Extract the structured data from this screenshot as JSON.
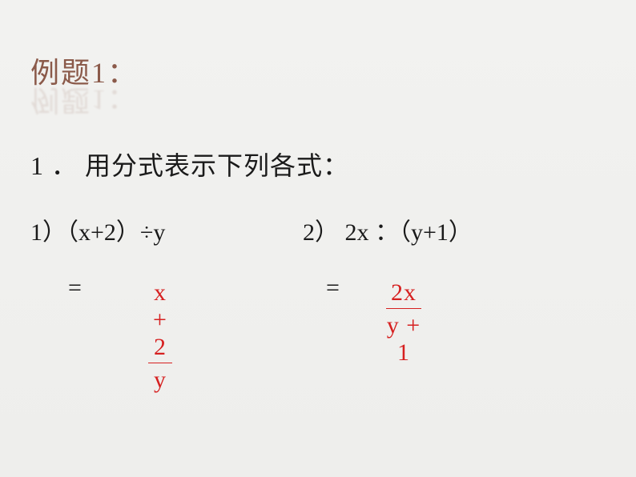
{
  "title": "例题1：",
  "subtitle": "1 ．  用分式表示下列各式：",
  "problems": {
    "p1": "1）（x+2）÷y",
    "p2": "2）   2x ：（y+1）"
  },
  "answers": {
    "equals": "=",
    "frac1_num": "x + 2",
    "frac1_den": "y",
    "frac2_num": "2x",
    "frac2_den": "y + 1"
  },
  "colors": {
    "title_color": "#8b5a4a",
    "text_color": "#1a1a1a",
    "answer_color": "#d62020",
    "background": "#f0f0ee"
  }
}
